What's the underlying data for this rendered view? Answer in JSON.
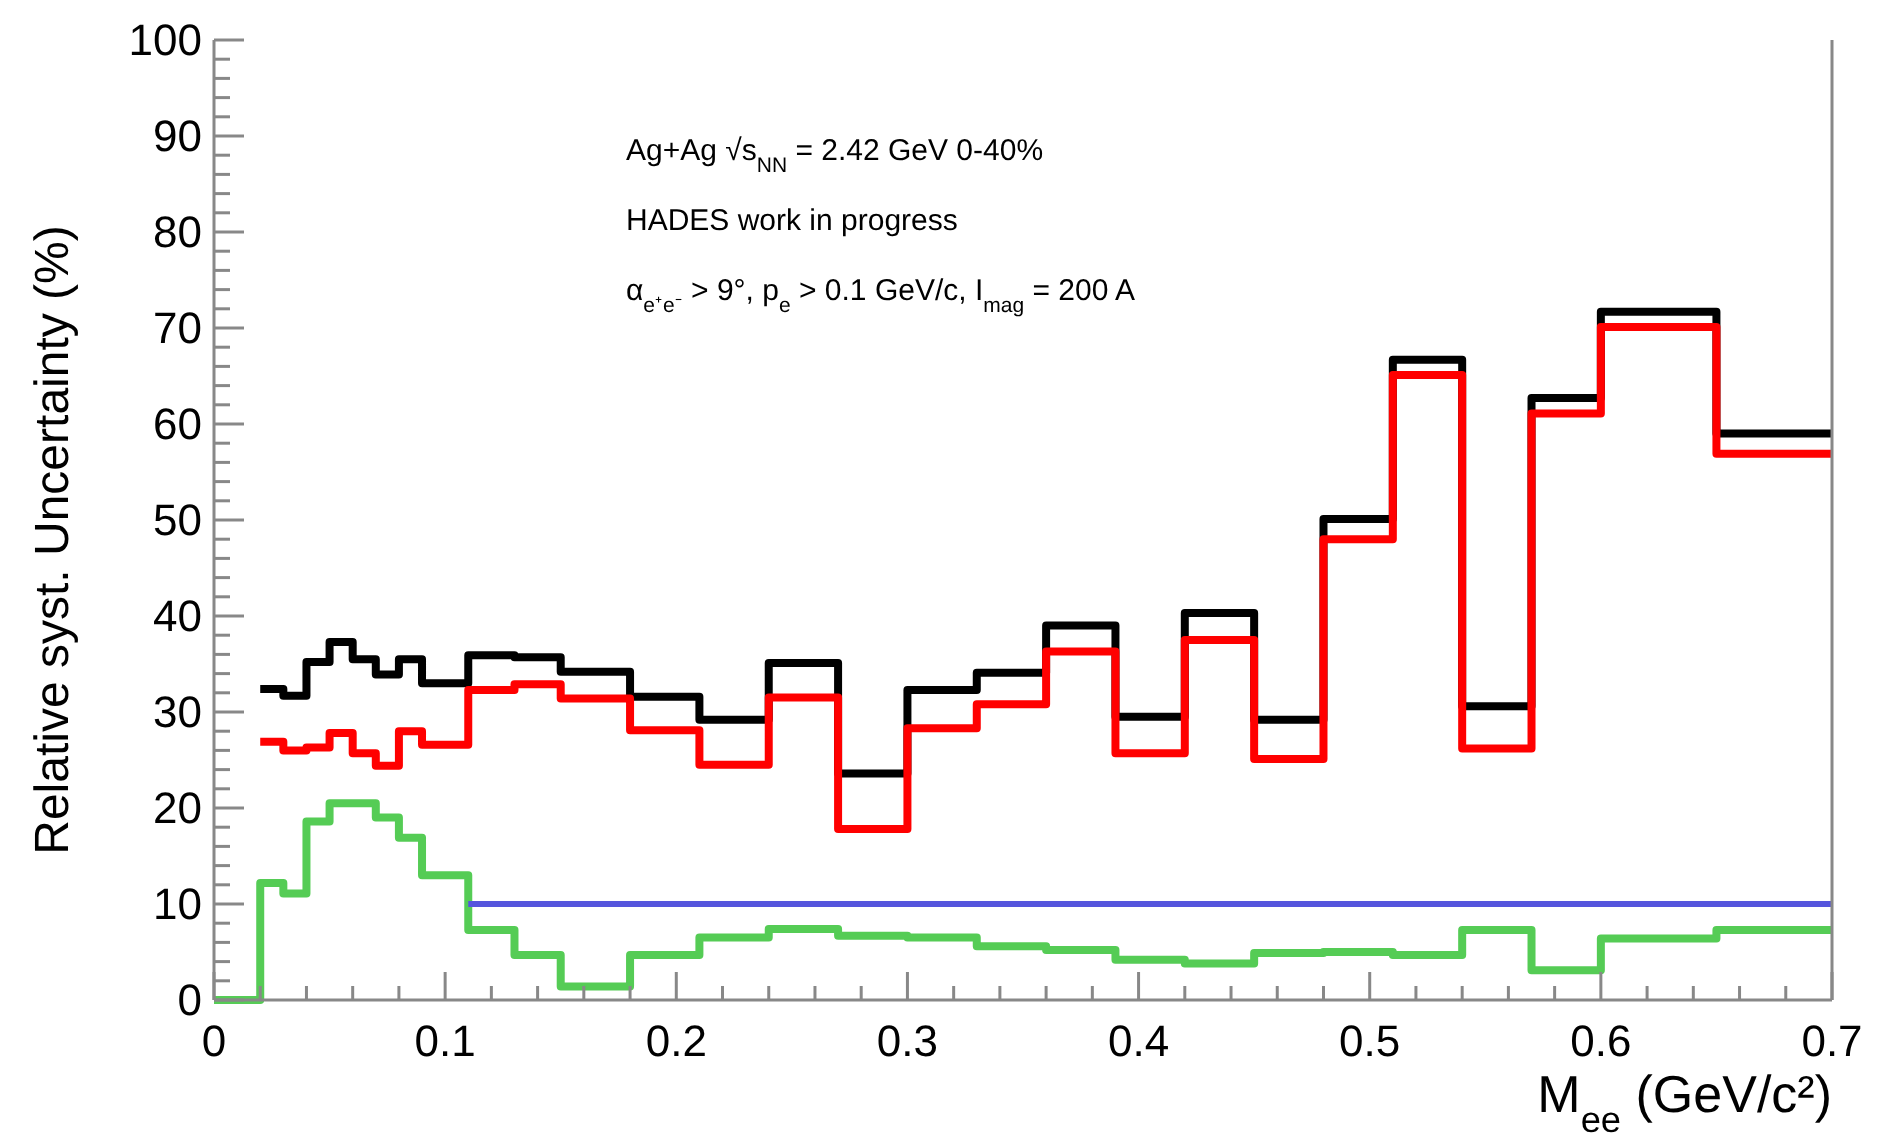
{
  "chart_data": {
    "type": "step",
    "xlabel": "M$_{ee}$ (GeV/c²)",
    "ylabel": "Relative syst. Uncertainty (%)",
    "series": [
      {
        "color": "#000000",
        "x": [
          0.02,
          0.03,
          0.04,
          0.05,
          0.06,
          0.07,
          0.08,
          0.09,
          0.11,
          0.13,
          0.15,
          0.18,
          0.21,
          0.24,
          0.27,
          0.3,
          0.33,
          0.36,
          0.39,
          0.42,
          0.45,
          0.48,
          0.51,
          0.54,
          0.57,
          0.6,
          0.65,
          0.7
        ],
        "values": [
          32.4,
          31.7,
          35.2,
          37.3,
          35.5,
          33.9,
          35.5,
          33.0,
          35.9,
          35.7,
          34.2,
          31.6,
          29.2,
          35.1,
          23.6,
          32.3,
          34.1,
          39.0,
          29.5,
          40.3,
          29.2,
          50.1,
          66.7,
          30.6,
          62.7,
          71.7,
          59.0,
          59.0
        ]
      },
      {
        "color": "#ff0000",
        "x": [
          0.02,
          0.03,
          0.04,
          0.05,
          0.06,
          0.07,
          0.08,
          0.09,
          0.11,
          0.13,
          0.15,
          0.18,
          0.21,
          0.24,
          0.27,
          0.3,
          0.33,
          0.36,
          0.39,
          0.42,
          0.45,
          0.48,
          0.51,
          0.54,
          0.57,
          0.6,
          0.65,
          0.7
        ],
        "values": [
          26.9,
          26.0,
          26.3,
          27.8,
          25.7,
          24.4,
          28.0,
          26.6,
          32.3,
          32.9,
          31.4,
          28.1,
          24.5,
          31.5,
          17.8,
          28.3,
          30.8,
          36.3,
          25.7,
          37.5,
          25.1,
          48.0,
          65.1,
          26.2,
          61.1,
          70.1,
          56.9,
          56.9
        ]
      },
      {
        "color": "#55cc55",
        "x": [
          0,
          0.02,
          0.03,
          0.04,
          0.05,
          0.06,
          0.07,
          0.08,
          0.09,
          0.11,
          0.13,
          0.15,
          0.18,
          0.21,
          0.24,
          0.27,
          0.3,
          0.33,
          0.36,
          0.39,
          0.42,
          0.45,
          0.48,
          0.51,
          0.54,
          0.57,
          0.6,
          0.65,
          0.7
        ],
        "values": [
          0,
          12.2,
          11.1,
          18.6,
          20.5,
          20.5,
          19.0,
          16.9,
          13.0,
          7.3,
          4.7,
          1.4,
          4.7,
          6.5,
          7.4,
          6.7,
          6.5,
          5.6,
          5.2,
          4.2,
          3.8,
          4.9,
          5.0,
          4.7,
          7.3,
          3.1,
          6.4,
          7.3,
          7.3
        ]
      },
      {
        "type": "line",
        "color": "#5555dd",
        "x": [
          0.11,
          0.7
        ],
        "values": [
          10,
          10
        ]
      }
    ],
    "xlim": [
      0,
      0.7
    ],
    "xticks": [
      0,
      {
        "value": 0.02,
        "label": null
      },
      {
        "value": 0.04,
        "label": null
      },
      {
        "value": 0.06,
        "label": null
      },
      {
        "value": 0.08,
        "label": null
      },
      0.1,
      {
        "value": 0.12,
        "label": null
      },
      {
        "value": 0.14,
        "label": null
      },
      {
        "value": 0.16,
        "label": null
      },
      {
        "value": 0.18,
        "label": null
      },
      0.2,
      {
        "value": 0.22,
        "label": null
      },
      {
        "value": 0.24,
        "label": null
      },
      {
        "value": 0.26,
        "label": null
      },
      {
        "value": 0.28,
        "label": null
      },
      0.3,
      {
        "value": 0.32,
        "label": null
      },
      {
        "value": 0.34,
        "label": null
      },
      {
        "value": 0.36,
        "label": null
      },
      {
        "value": 0.38,
        "label": null
      },
      0.4,
      {
        "value": 0.42,
        "label": null
      },
      {
        "value": 0.44,
        "label": null
      },
      {
        "value": 0.46,
        "label": null
      },
      {
        "value": 0.48,
        "label": null
      },
      0.5,
      {
        "value": 0.52,
        "label": null
      },
      {
        "value": 0.54,
        "label": null
      },
      {
        "value": 0.56,
        "label": null
      },
      {
        "value": 0.58,
        "label": null
      },
      0.6,
      {
        "value": 0.62,
        "label": null
      },
      {
        "value": 0.64,
        "label": null
      },
      {
        "value": 0.66,
        "label": null
      },
      {
        "value": 0.68,
        "label": null
      },
      0.7
    ],
    "ylim": [
      0,
      100
    ],
    "yticks": [
      0,
      {
        "value": 2,
        "label": null
      },
      {
        "value": 4,
        "label": null
      },
      {
        "value": 6,
        "label": null
      },
      {
        "value": 8,
        "label": null
      },
      10,
      {
        "value": 12,
        "label": null
      },
      {
        "value": 14,
        "label": null
      },
      {
        "value": 16,
        "label": null
      },
      {
        "value": 18,
        "label": null
      },
      20,
      {
        "value": 22,
        "label": null
      },
      {
        "value": 24,
        "label": null
      },
      {
        "value": 26,
        "label": null
      },
      {
        "value": 28,
        "label": null
      },
      30,
      {
        "value": 32,
        "label": null
      },
      {
        "value": 34,
        "label": null
      },
      {
        "value": 36,
        "label": null
      },
      {
        "value": 38,
        "label": null
      },
      40,
      {
        "value": 42,
        "label": null
      },
      {
        "value": 44,
        "label": null
      },
      {
        "value": 46,
        "label": null
      },
      {
        "value": 48,
        "label": null
      },
      50,
      {
        "value": 52,
        "label": null
      },
      {
        "value": 54,
        "label": null
      },
      {
        "value": 56,
        "label": null
      },
      {
        "value": 58,
        "label": null
      },
      60,
      {
        "value": 62,
        "label": null
      },
      {
        "value": 64,
        "label": null
      },
      {
        "value": 66,
        "label": null
      },
      {
        "value": 68,
        "label": null
      },
      70,
      {
        "value": 72,
        "label": null
      },
      {
        "value": 74,
        "label": null
      },
      {
        "value": 76,
        "label": null
      },
      {
        "value": 78,
        "label": null
      },
      80,
      {
        "value": 82,
        "label": null
      },
      {
        "value": 84,
        "label": null
      },
      {
        "value": 86,
        "label": null
      },
      {
        "value": 88,
        "label": null
      },
      90,
      {
        "value": 92,
        "label": null
      },
      {
        "value": 94,
        "label": null
      },
      {
        "value": 96,
        "label": null
      },
      {
        "value": 98,
        "label": null
      },
      100
    ],
    "grid": false,
    "annotations": [
      "Ag+Ag √s$_{NN}$ = 2.42 GeV 0-40%",
      "HADES work in progress",
      "α$_{e⁺e⁻}$ > 9°, p$_{e}$ > 0.1 GeV/c, I$_{mag}$ = 200 A"
    ]
  }
}
